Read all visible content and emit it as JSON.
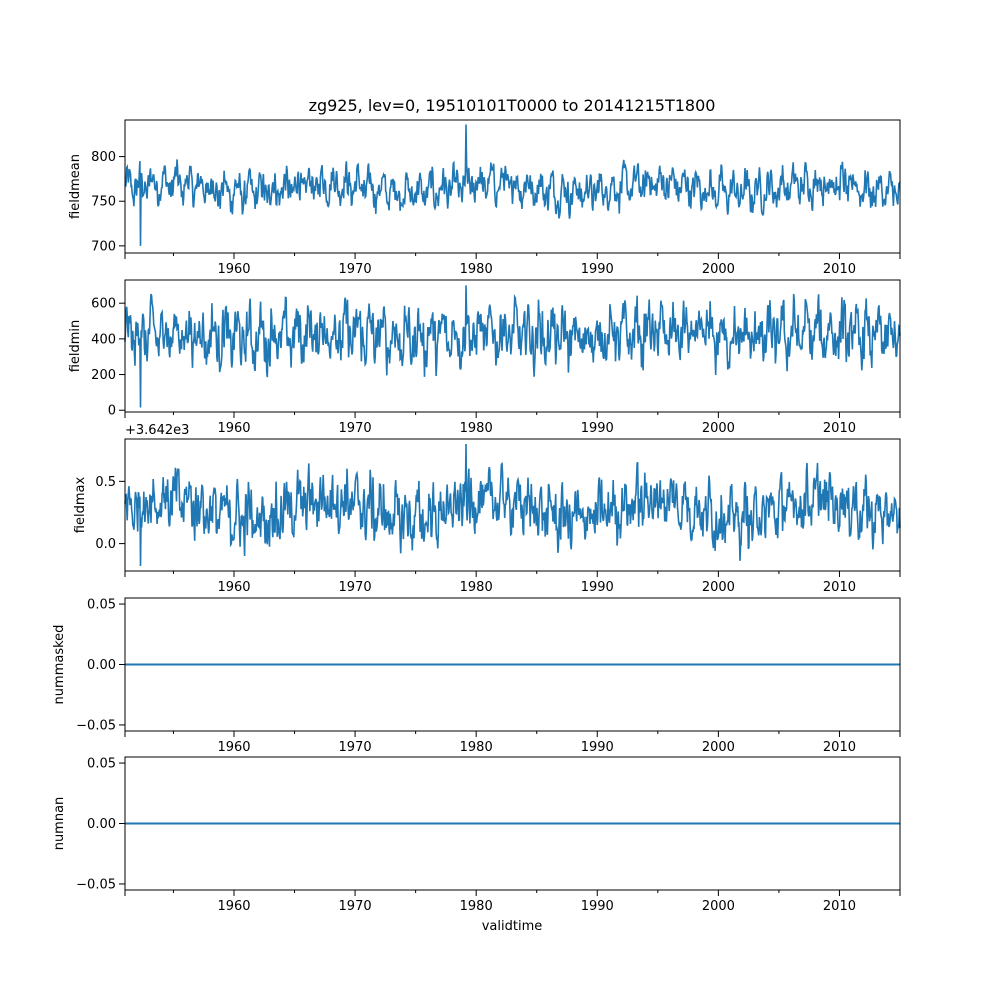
{
  "chart_data": {
    "type": "line",
    "title": "zg925, lev=0, 19510101T0000 to 20141215T1800",
    "xlabel": "validtime",
    "xlim": [
      1951.0,
      2015.0
    ],
    "x_ticks": [
      1960,
      1970,
      1980,
      1990,
      2000,
      2010
    ],
    "x_tick_labels": [
      "1960",
      "1970",
      "1980",
      "1990",
      "2000",
      "2010"
    ],
    "series_color": "#1f77b4",
    "panels": [
      {
        "ylabel": "fieldmean",
        "ylim": [
          692,
          841
        ],
        "y_ticks": [
          700,
          750,
          800
        ],
        "y_tick_labels": [
          "700",
          "750",
          "800"
        ],
        "offset_label": "",
        "signal": {
          "center": 765,
          "seasonal_amp": 10,
          "slow_amp": 5,
          "noise_amp": 22,
          "low_extreme": 700,
          "high_extreme": 836
        },
        "flat": false
      },
      {
        "ylabel": "fieldmin",
        "ylim": [
          -10,
          730
        ],
        "y_ticks": [
          0,
          200,
          400,
          600
        ],
        "y_tick_labels": [
          "0",
          "200",
          "400",
          "600"
        ],
        "offset_label": "",
        "signal": {
          "center": 420,
          "seasonal_amp": 80,
          "slow_amp": 15,
          "noise_amp": 170,
          "low_extreme": 15,
          "high_extreme": 700
        },
        "flat": false
      },
      {
        "ylabel": "fieldmax",
        "ylim": [
          -0.22,
          0.84
        ],
        "y_ticks": [
          0.0,
          0.5
        ],
        "y_tick_labels": [
          "0.0",
          "0.5"
        ],
        "offset_label": "+3.642e3",
        "signal": {
          "center": 0.28,
          "seasonal_amp": 0.08,
          "slow_amp": 0.08,
          "noise_amp": 0.28,
          "low_extreme": -0.18,
          "high_extreme": 0.8
        },
        "flat": false
      },
      {
        "ylabel": "nummasked",
        "ylim": [
          -0.055,
          0.055
        ],
        "y_ticks": [
          -0.05,
          0.0,
          0.05
        ],
        "y_tick_labels": [
          "−0.05",
          "0.00",
          "0.05"
        ],
        "offset_label": "",
        "value": 0.0,
        "flat": true
      },
      {
        "ylabel": "numnan",
        "ylim": [
          -0.055,
          0.055
        ],
        "y_ticks": [
          -0.05,
          0.0,
          0.05
        ],
        "y_tick_labels": [
          "−0.05",
          "0.00",
          "0.05"
        ],
        "offset_label": "",
        "value": 0.0,
        "flat": true
      }
    ]
  }
}
